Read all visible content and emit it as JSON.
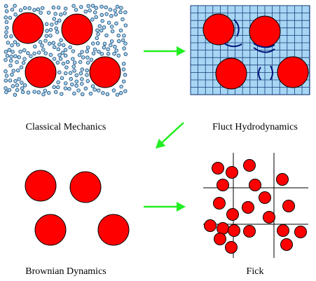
{
  "colors": {
    "particle_fill": "#ff0000",
    "particle_stroke": "#000000",
    "solvent_fill": "#a8d8f0",
    "solvent_stroke": "#1e4a7a",
    "grid_fill": "#a7d6f5",
    "grid_line": "#1a3c78",
    "flow_line": "#00137a",
    "arrow": "#22ee22",
    "fick_grid": "#000000"
  },
  "panels": {
    "classical": {
      "label": "Classical Mechanics"
    },
    "fluct": {
      "label": "Fluct Hydrodynamics"
    },
    "brownian": {
      "label": "Brownian Dynamics"
    },
    "fick": {
      "label": "Fick"
    }
  }
}
